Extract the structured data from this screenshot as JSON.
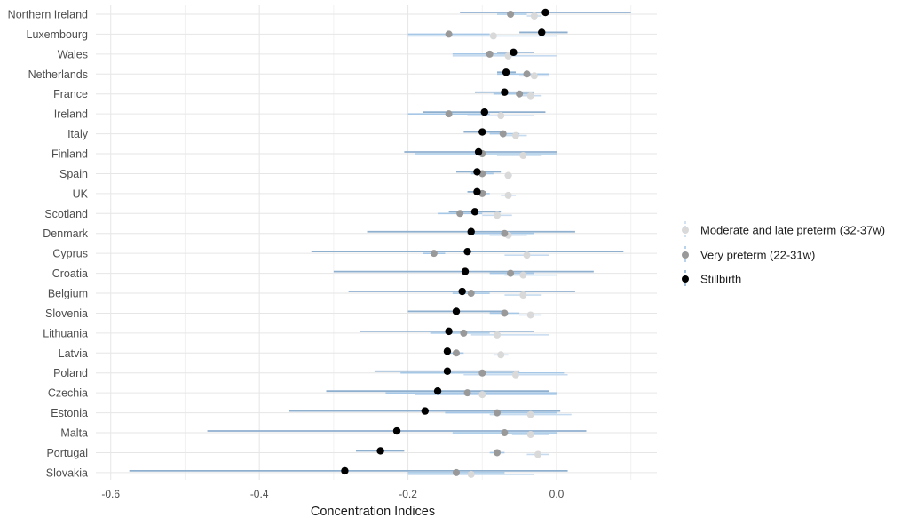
{
  "chart_data": {
    "type": "forest",
    "xlabel": "Concentration Indices",
    "x_ticks": [
      -0.6,
      -0.4,
      -0.2,
      0.0
    ],
    "x_tick_labels": [
      "-0.6",
      "-0.4",
      "-0.2",
      "0.0"
    ],
    "xlim": [
      -0.62,
      0.135
    ],
    "grid": true,
    "legend_position": "right",
    "categories": [
      "Northern Ireland",
      "Luxembourg",
      "Wales",
      "Netherlands",
      "France",
      "Ireland",
      "Italy",
      "Finland",
      "Spain",
      "UK",
      "Scotland",
      "Denmark",
      "Cyprus",
      "Croatia",
      "Belgium",
      "Slovenia",
      "Lithuania",
      "Latvia",
      "Poland",
      "Czechia",
      "Estonia",
      "Malta",
      "Portugal",
      "Slovakia"
    ],
    "series": [
      {
        "name": "Moderate and late preterm (32-37w)",
        "point_color": "#d9d9d9",
        "ci_color": "#c6dbef",
        "values": [
          -0.03,
          -0.085,
          -0.065,
          -0.03,
          -0.035,
          -0.075,
          -0.055,
          -0.045,
          -0.065,
          -0.065,
          -0.08,
          -0.065,
          -0.04,
          -0.045,
          -0.045,
          -0.035,
          -0.08,
          -0.075,
          -0.055,
          -0.1,
          -0.035,
          -0.035,
          -0.025,
          -0.115
        ],
        "ci_low": [
          -0.04,
          -0.2,
          -0.14,
          -0.05,
          -0.05,
          -0.12,
          -0.07,
          -0.08,
          -0.07,
          -0.075,
          -0.1,
          -0.09,
          -0.07,
          -0.07,
          -0.07,
          -0.05,
          -0.115,
          -0.085,
          -0.125,
          -0.19,
          -0.09,
          -0.06,
          -0.04,
          -0.2
        ],
        "ci_high": [
          -0.02,
          0.0,
          0.0,
          -0.01,
          -0.02,
          -0.03,
          -0.04,
          -0.02,
          -0.06,
          -0.055,
          -0.06,
          -0.04,
          -0.01,
          0.0,
          -0.02,
          -0.02,
          -0.01,
          -0.065,
          0.015,
          0.0,
          0.02,
          -0.01,
          -0.01,
          -0.03
        ]
      },
      {
        "name": "Very preterm (22-31w)",
        "point_color": "#999999",
        "ci_color": "#a6c8e6",
        "values": [
          -0.062,
          -0.145,
          -0.09,
          -0.04,
          -0.05,
          -0.145,
          -0.072,
          -0.1,
          -0.1,
          -0.1,
          -0.13,
          -0.07,
          -0.165,
          -0.062,
          -0.115,
          -0.07,
          -0.125,
          -0.135,
          -0.1,
          -0.12,
          -0.08,
          -0.07,
          -0.08,
          -0.135
        ],
        "ci_low": [
          -0.08,
          -0.2,
          -0.14,
          -0.08,
          -0.085,
          -0.2,
          -0.09,
          -0.19,
          -0.115,
          -0.11,
          -0.16,
          -0.12,
          -0.18,
          -0.09,
          -0.14,
          -0.09,
          -0.17,
          -0.145,
          -0.21,
          -0.23,
          -0.15,
          -0.14,
          -0.09,
          -0.2
        ],
        "ci_high": [
          -0.04,
          -0.09,
          -0.06,
          -0.01,
          -0.03,
          -0.09,
          -0.05,
          0.0,
          -0.085,
          -0.09,
          -0.1,
          -0.03,
          -0.15,
          -0.03,
          -0.09,
          -0.05,
          -0.09,
          -0.125,
          0.01,
          0.0,
          0.0,
          0.0,
          -0.07,
          -0.07
        ]
      },
      {
        "name": "Stillbirth",
        "point_color": "#000000",
        "ci_color": "#8fafcf",
        "values": [
          -0.015,
          -0.02,
          -0.058,
          -0.068,
          -0.07,
          -0.097,
          -0.1,
          -0.105,
          -0.107,
          -0.107,
          -0.11,
          -0.115,
          -0.12,
          -0.123,
          -0.127,
          -0.135,
          -0.145,
          -0.147,
          -0.147,
          -0.16,
          -0.177,
          -0.215,
          -0.237,
          -0.285
        ],
        "ci_low": [
          -0.13,
          -0.05,
          -0.08,
          -0.08,
          -0.11,
          -0.18,
          -0.125,
          -0.205,
          -0.135,
          -0.12,
          -0.145,
          -0.255,
          -0.33,
          -0.3,
          -0.28,
          -0.2,
          -0.265,
          -0.15,
          -0.245,
          -0.31,
          -0.36,
          -0.47,
          -0.27,
          -0.575
        ],
        "ci_high": [
          0.1,
          0.015,
          -0.03,
          -0.055,
          -0.03,
          -0.015,
          -0.075,
          0.0,
          -0.075,
          -0.095,
          -0.075,
          0.025,
          0.09,
          0.05,
          0.025,
          -0.07,
          -0.03,
          -0.145,
          -0.05,
          -0.01,
          0.005,
          0.04,
          -0.205,
          0.015
        ]
      }
    ]
  }
}
